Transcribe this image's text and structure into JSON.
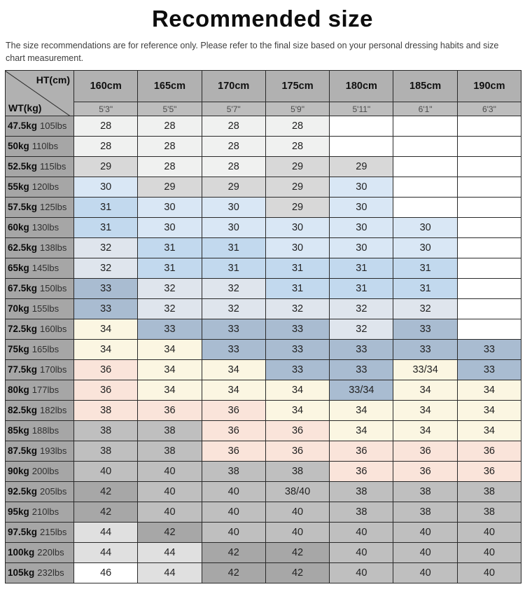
{
  "page": {
    "title": "Recommended size",
    "disclaimer": "The size recommendations are for reference only. Please refer to the final size based on your personal dressing habits and size chart measurement."
  },
  "colors": {
    "header_bg": "#b1b1b1",
    "subheader_bg": "#bdbdbd",
    "row_label_bg": "#a6a6a6",
    "grid_border": "#2a2a2a"
  },
  "chart_data": {
    "type": "table",
    "title": "Recommended size",
    "corner": {
      "ht": "HT(cm)",
      "wt": "WT(kg)"
    },
    "columns_cm": [
      "160cm",
      "165cm",
      "170cm",
      "175cm",
      "180cm",
      "185cm",
      "190cm"
    ],
    "columns_ft": [
      "5'3\"",
      "5'5\"",
      "5'7\"",
      "5'9\"",
      "5'11\"",
      "6'1\"",
      "6'3\""
    ],
    "palette": {
      "w": "#ffffff",
      "s28": "#f0f1f0",
      "s29": "#d8d8d8",
      "s30": "#d9e7f5",
      "s31": "#c2d9ee",
      "s32": "#dfe5ed",
      "s33": "#a9bcd1",
      "cream": "#fbf6e2",
      "pink": "#fae4da",
      "gray": "#bfbfbf",
      "darkgray": "#a7a7a7",
      "lightgray": "#e0e0e0"
    },
    "rows": [
      {
        "kg": "47.5kg",
        "lbs": "105lbs",
        "sizes": [
          "28",
          "28",
          "28",
          "28",
          "",
          "",
          ""
        ],
        "colors": [
          "s28",
          "s28",
          "s28",
          "s28",
          "w",
          "w",
          "w"
        ]
      },
      {
        "kg": "50kg",
        "lbs": "110lbs",
        "sizes": [
          "28",
          "28",
          "28",
          "28",
          "",
          "",
          ""
        ],
        "colors": [
          "s28",
          "s28",
          "s28",
          "s28",
          "w",
          "w",
          "w"
        ]
      },
      {
        "kg": "52.5kg",
        "lbs": "115lbs",
        "sizes": [
          "29",
          "28",
          "28",
          "29",
          "29",
          "",
          ""
        ],
        "colors": [
          "s29",
          "s28",
          "s28",
          "s29",
          "s29",
          "w",
          "w"
        ]
      },
      {
        "kg": "55kg",
        "lbs": "120lbs",
        "sizes": [
          "30",
          "29",
          "29",
          "29",
          "30",
          "",
          ""
        ],
        "colors": [
          "s30",
          "s29",
          "s29",
          "s29",
          "s30",
          "w",
          "w"
        ]
      },
      {
        "kg": "57.5kg",
        "lbs": "125lbs",
        "sizes": [
          "31",
          "30",
          "30",
          "29",
          "30",
          "",
          ""
        ],
        "colors": [
          "s31",
          "s30",
          "s30",
          "s29",
          "s30",
          "w",
          "w"
        ]
      },
      {
        "kg": "60kg",
        "lbs": "130lbs",
        "sizes": [
          "31",
          "30",
          "30",
          "30",
          "30",
          "30",
          ""
        ],
        "colors": [
          "s31",
          "s30",
          "s30",
          "s30",
          "s30",
          "s30",
          "w"
        ]
      },
      {
        "kg": "62.5kg",
        "lbs": "138lbs",
        "sizes": [
          "32",
          "31",
          "31",
          "30",
          "30",
          "30",
          ""
        ],
        "colors": [
          "s32",
          "s31",
          "s31",
          "s30",
          "s30",
          "s30",
          "w"
        ]
      },
      {
        "kg": "65kg",
        "lbs": "145lbs",
        "sizes": [
          "32",
          "31",
          "31",
          "31",
          "31",
          "31",
          ""
        ],
        "colors": [
          "s32",
          "s31",
          "s31",
          "s31",
          "s31",
          "s31",
          "w"
        ]
      },
      {
        "kg": "67.5kg",
        "lbs": "150lbs",
        "sizes": [
          "33",
          "32",
          "32",
          "31",
          "31",
          "31",
          ""
        ],
        "colors": [
          "s33",
          "s32",
          "s32",
          "s31",
          "s31",
          "s31",
          "w"
        ]
      },
      {
        "kg": "70kg",
        "lbs": "155lbs",
        "sizes": [
          "33",
          "32",
          "32",
          "32",
          "32",
          "32",
          ""
        ],
        "colors": [
          "s33",
          "s32",
          "s32",
          "s32",
          "s32",
          "s32",
          "w"
        ]
      },
      {
        "kg": "72.5kg",
        "lbs": "160lbs",
        "sizes": [
          "34",
          "33",
          "33",
          "33",
          "32",
          "33",
          ""
        ],
        "colors": [
          "cream",
          "s33",
          "s33",
          "s33",
          "s32",
          "s33",
          "w"
        ]
      },
      {
        "kg": "75kg",
        "lbs": "165lbs",
        "sizes": [
          "34",
          "34",
          "33",
          "33",
          "33",
          "33",
          "33"
        ],
        "colors": [
          "cream",
          "cream",
          "s33",
          "s33",
          "s33",
          "s33",
          "s33"
        ]
      },
      {
        "kg": "77.5kg",
        "lbs": "170lbs",
        "sizes": [
          "36",
          "34",
          "34",
          "33",
          "33",
          "33/34",
          "33"
        ],
        "colors": [
          "pink",
          "cream",
          "cream",
          "s33",
          "s33",
          "cream",
          "s33"
        ]
      },
      {
        "kg": "80kg",
        "lbs": "177lbs",
        "sizes": [
          "36",
          "34",
          "34",
          "34",
          "33/34",
          "34",
          "34"
        ],
        "colors": [
          "pink",
          "cream",
          "cream",
          "cream",
          "s33",
          "cream",
          "cream"
        ]
      },
      {
        "kg": "82.5kg",
        "lbs": "182lbs",
        "sizes": [
          "38",
          "36",
          "36",
          "34",
          "34",
          "34",
          "34"
        ],
        "colors": [
          "pink",
          "pink",
          "pink",
          "cream",
          "cream",
          "cream",
          "cream"
        ]
      },
      {
        "kg": "85kg",
        "lbs": "188lbs",
        "sizes": [
          "38",
          "38",
          "36",
          "36",
          "34",
          "34",
          "34"
        ],
        "colors": [
          "gray",
          "gray",
          "pink",
          "pink",
          "cream",
          "cream",
          "cream"
        ]
      },
      {
        "kg": "87.5kg",
        "lbs": "193lbs",
        "sizes": [
          "38",
          "38",
          "36",
          "36",
          "36",
          "36",
          "36"
        ],
        "colors": [
          "gray",
          "gray",
          "pink",
          "pink",
          "pink",
          "pink",
          "pink"
        ]
      },
      {
        "kg": "90kg",
        "lbs": "200lbs",
        "sizes": [
          "40",
          "40",
          "38",
          "38",
          "36",
          "36",
          "36"
        ],
        "colors": [
          "gray",
          "gray",
          "gray",
          "gray",
          "pink",
          "pink",
          "pink"
        ]
      },
      {
        "kg": "92.5kg",
        "lbs": "205lbs",
        "sizes": [
          "42",
          "40",
          "40",
          "38/40",
          "38",
          "38",
          "38"
        ],
        "colors": [
          "darkgray",
          "gray",
          "gray",
          "gray",
          "gray",
          "gray",
          "gray"
        ]
      },
      {
        "kg": "95kg",
        "lbs": "210lbs",
        "sizes": [
          "42",
          "40",
          "40",
          "40",
          "38",
          "38",
          "38"
        ],
        "colors": [
          "darkgray",
          "gray",
          "gray",
          "gray",
          "gray",
          "gray",
          "gray"
        ]
      },
      {
        "kg": "97.5kg",
        "lbs": "215lbs",
        "sizes": [
          "44",
          "42",
          "40",
          "40",
          "40",
          "40",
          "40"
        ],
        "colors": [
          "lightgray",
          "darkgray",
          "gray",
          "gray",
          "gray",
          "gray",
          "gray"
        ]
      },
      {
        "kg": "100kg",
        "lbs": "220lbs",
        "sizes": [
          "44",
          "44",
          "42",
          "42",
          "40",
          "40",
          "40"
        ],
        "colors": [
          "lightgray",
          "lightgray",
          "darkgray",
          "darkgray",
          "gray",
          "gray",
          "gray"
        ]
      },
      {
        "kg": "105kg",
        "lbs": "232lbs",
        "sizes": [
          "46",
          "44",
          "42",
          "42",
          "40",
          "40",
          "40"
        ],
        "colors": [
          "w",
          "lightgray",
          "darkgray",
          "darkgray",
          "gray",
          "gray",
          "gray"
        ]
      }
    ]
  }
}
